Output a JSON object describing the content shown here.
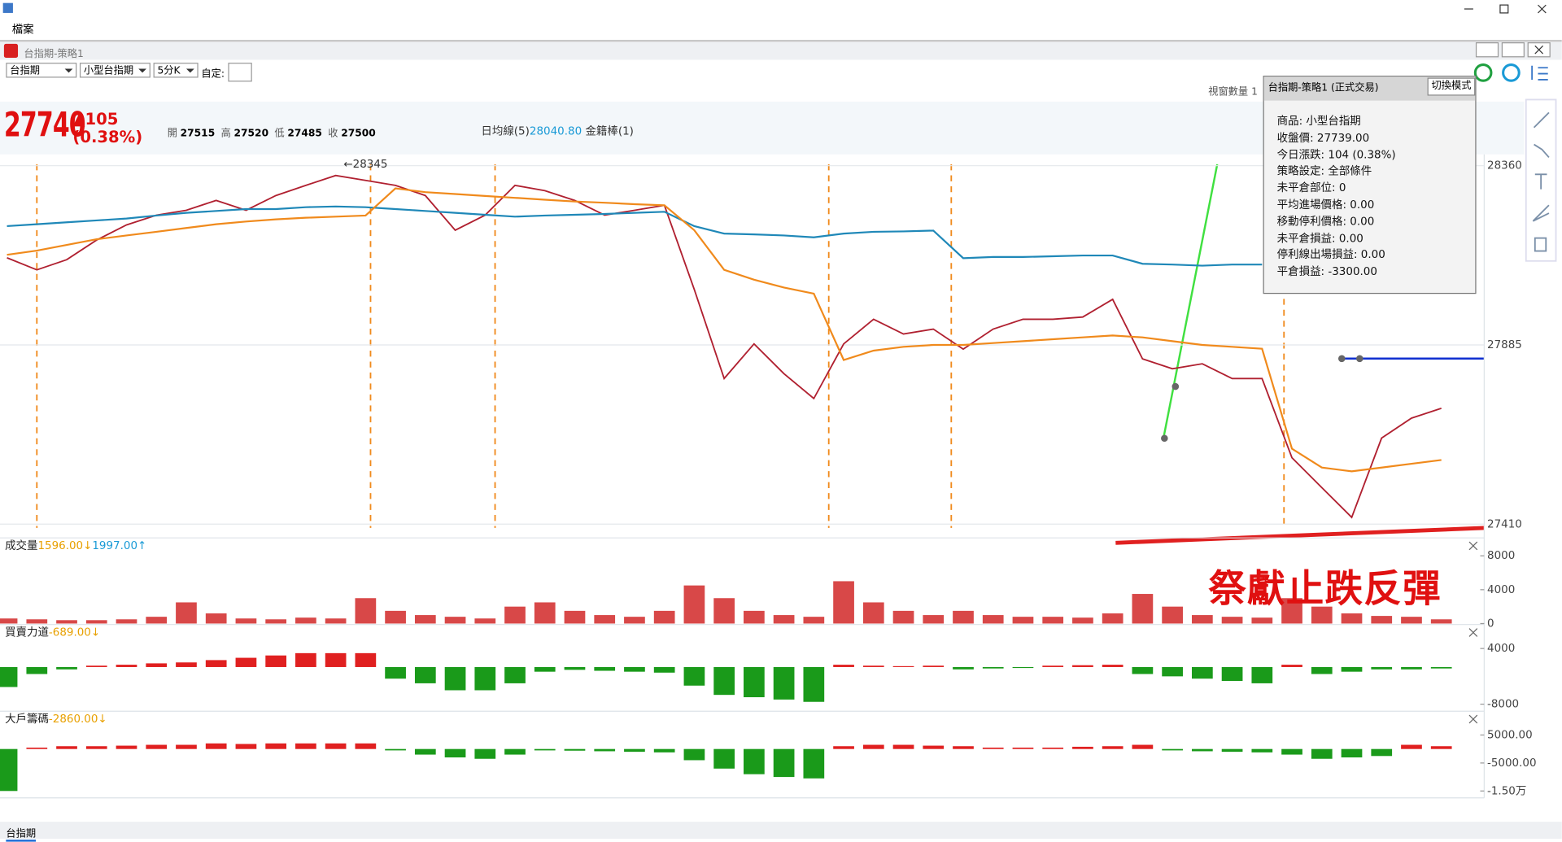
{
  "window": {
    "menu": "檔案"
  },
  "app_title": "台指期-策略1",
  "toolbar": {
    "market": "台指期",
    "product": "小型台指期",
    "interval": "5分K",
    "custom_label": "自定:"
  },
  "window_count": "視窗數量 1",
  "quote": {
    "price": 27740,
    "change": "▲105",
    "percent": "(0.38%)",
    "ohlc": [
      {
        "label": "開",
        "value": 27515
      },
      {
        "label": "高",
        "value": 27520
      },
      {
        "label": "低",
        "value": 27485
      },
      {
        "label": "收",
        "value": 27500
      }
    ],
    "ma_label": "日均線(5)",
    "ma_value": "28040.80",
    "extra": "金籍棒(1)"
  },
  "tooltip": "切換模式",
  "popup": {
    "title": "台指期-策略1 (正式交易)",
    "lines": [
      "商品: 小型台指期",
      "收盤價: 27739.00",
      "今日漲跌: 104 (0.38%)",
      "策略設定: 全部條件",
      "未平倉部位: 0",
      "平均進場價格: 0.00",
      "移動停利價格: 0.00",
      "未平倉損益: 0.00",
      "停利線出場損益: 0.00",
      "平倉損益: -3300.00"
    ]
  },
  "overlay_text": "祭獻止跌反彈",
  "chart_data": [
    {
      "type": "line",
      "annotation": "←28345",
      "ylim": [
        27400,
        28390
      ],
      "yticks": [
        27410,
        27885,
        28360
      ],
      "grid": true,
      "series": [
        {
          "color": "#b02030",
          "values": [
            28116,
            28084,
            28111,
            28163,
            28203,
            28229,
            28242,
            28268,
            28242,
            28281,
            28308,
            28334,
            28321,
            28308,
            28281,
            28189,
            28229,
            28308,
            28294,
            28268,
            28229,
            28242,
            28255,
            28032,
            27796,
            27888,
            27809,
            27743,
            27888,
            27953,
            27914,
            27927,
            27874,
            27927,
            27953,
            27953,
            27959,
            28006,
            27848,
            27822,
            27835,
            27796,
            27796,
            27586,
            27507,
            27428,
            27638,
            27691,
            27717
          ]
        },
        {
          "color": "#1f88b8",
          "values": [
            28200,
            28205,
            28210,
            28215,
            28220,
            28228,
            28235,
            28240,
            28245,
            28245,
            28250,
            28252,
            28250,
            28245,
            28240,
            28235,
            28230,
            28225,
            28228,
            28230,
            28232,
            28235,
            28238,
            28200,
            28180,
            28178,
            28175,
            28170,
            28180,
            28185,
            28186,
            28188,
            28115,
            28118,
            28118,
            28120,
            28122,
            28122,
            28100,
            28098,
            28095,
            28098,
            28098,
            null,
            null,
            null,
            null,
            null,
            null
          ]
        },
        {
          "color": "#f08a1c",
          "values": [
            28124,
            28135,
            28150,
            28165,
            28175,
            28185,
            28195,
            28205,
            28212,
            28218,
            28222,
            28225,
            28228,
            28300,
            28290,
            28285,
            28280,
            28275,
            28270,
            28265,
            28262,
            28258,
            28255,
            28189,
            28084,
            28058,
            28037,
            28021,
            27845,
            27870,
            27880,
            27885,
            27885,
            27890,
            27895,
            27900,
            27905,
            27910,
            27905,
            27895,
            27885,
            27880,
            27875,
            27610,
            27560,
            27550,
            27560,
            27570,
            27580
          ]
        }
      ]
    },
    {
      "type": "bar",
      "title": "成交量",
      "readouts": [
        {
          "text": "1596.00↓",
          "color": "#e8a000"
        },
        {
          "text": "1997.00↑",
          "color": "#1a9ad6"
        }
      ],
      "ylim": [
        0,
        8000
      ],
      "yticks": [
        0,
        4000,
        8000
      ],
      "color": "#d84848",
      "values": [
        600,
        500,
        400,
        400,
        500,
        800,
        2500,
        1200,
        600,
        500,
        700,
        600,
        3000,
        1500,
        1000,
        800,
        600,
        2000,
        2500,
        1500,
        1000,
        800,
        1500,
        4500,
        3000,
        1500,
        1000,
        800,
        5000,
        2500,
        1500,
        1000,
        1500,
        1000,
        800,
        800,
        700,
        1200,
        3500,
        2000,
        1000,
        800,
        700,
        3000,
        2000,
        1200,
        900,
        800,
        500
      ]
    },
    {
      "type": "bar",
      "title": "買賣力道",
      "readouts": [
        {
          "text": "-689.00↓",
          "color": "#e8a000"
        }
      ],
      "ylim": [
        -9300,
        5300
      ],
      "yticks": [
        4000,
        -8000
      ],
      "colors": {
        "up": "#e02020",
        "down": "#1a9a1a"
      },
      "values": [
        -4300,
        -1500,
        -500,
        300,
        500,
        800,
        1000,
        1500,
        2000,
        2500,
        3000,
        3000,
        3000,
        -2500,
        -3500,
        -5000,
        -5000,
        -3500,
        -1000,
        -600,
        -800,
        -1000,
        -1200,
        -4000,
        -6000,
        -6500,
        -7000,
        -7500,
        500,
        300,
        200,
        300,
        -500,
        -300,
        -200,
        300,
        400,
        500,
        -1500,
        -2000,
        -2500,
        -3000,
        -3500,
        500,
        -1500,
        -1000,
        -500,
        -500,
        -300
      ]
    },
    {
      "type": "bar",
      "title": "大戶籌碼",
      "readouts": [
        {
          "text": "-2860.00↓",
          "color": "#e8a000"
        }
      ],
      "ylim": [
        -17100,
        7100
      ],
      "yticks": [
        {
          "value": 5000,
          "label": "5000.00"
        },
        {
          "value": -5000,
          "label": "-5000.00"
        },
        {
          "value": -15000,
          "label": "-1.50万"
        }
      ],
      "colors": {
        "up": "#e02020",
        "down": "#1a9a1a"
      },
      "values": [
        -15000,
        500,
        1000,
        1000,
        1200,
        1500,
        1500,
        2000,
        1800,
        2000,
        2000,
        2000,
        2000,
        -500,
        -2000,
        -3000,
        -3500,
        -2000,
        -500,
        -600,
        -800,
        -1000,
        -1200,
        -4000,
        -7000,
        -9000,
        -10000,
        -10500,
        1000,
        1500,
        1500,
        1200,
        1000,
        500,
        500,
        500,
        800,
        1000,
        1500,
        -500,
        -800,
        -1000,
        -1200,
        -2000,
        -3500,
        -3000,
        -2500,
        1500,
        1000
      ]
    }
  ],
  "tab": "台指期"
}
